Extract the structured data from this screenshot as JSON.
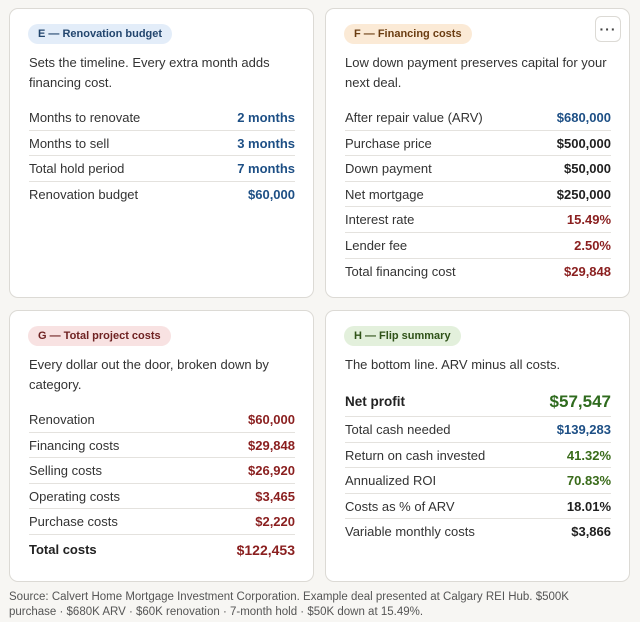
{
  "card_e": {
    "badge": "E — Renovation budget",
    "description": "Sets the timeline. Every extra month adds financing cost.",
    "rows": [
      {
        "label": "Months to renovate",
        "value": "2 months"
      },
      {
        "label": "Months to sell",
        "value": "3 months"
      },
      {
        "label": "Total hold period",
        "value": "7 months"
      },
      {
        "label": "Renovation budget",
        "value": "$60,000"
      }
    ]
  },
  "card_f": {
    "badge": "F — Financing costs",
    "more_label": "···",
    "description": "Low down payment preserves capital for your next deal.",
    "rows": [
      {
        "label": "After repair value (ARV)",
        "value": "$680,000"
      },
      {
        "label": "Purchase price",
        "value": "$500,000"
      },
      {
        "label": "Down payment",
        "value": "$50,000"
      },
      {
        "label": "Net mortgage",
        "value": "$250,000"
      },
      {
        "label": "Interest rate",
        "value": "15.49%"
      },
      {
        "label": "Lender fee",
        "value": "2.50%"
      },
      {
        "label": "Total financing cost",
        "value": "$29,848"
      }
    ]
  },
  "card_g": {
    "badge": "G — Total project costs",
    "description": "Every dollar out the door, broken down by category.",
    "rows": [
      {
        "label": "Renovation",
        "value": "$60,000"
      },
      {
        "label": "Financing costs",
        "value": "$29,848"
      },
      {
        "label": "Selling costs",
        "value": "$26,920"
      },
      {
        "label": "Operating costs",
        "value": "$3,465"
      },
      {
        "label": "Purchase costs",
        "value": "$2,220"
      },
      {
        "label": "Total costs",
        "value": "$122,453"
      }
    ]
  },
  "card_h": {
    "badge": "H — Flip summary",
    "description": "The bottom line. ARV minus all costs.",
    "rows": [
      {
        "label": "Net profit",
        "value": "$57,547"
      },
      {
        "label": "Total cash needed",
        "value": "$139,283"
      },
      {
        "label": "Return on cash invested",
        "value": "41.32%"
      },
      {
        "label": "Annualized ROI",
        "value": "70.83%"
      },
      {
        "label": "Costs as % of ARV",
        "value": "18.01%"
      },
      {
        "label": "Variable monthly costs",
        "value": "$3,866"
      }
    ]
  },
  "source": "Source: Calvert Home Mortgage Investment Corporation. Example deal presented at Calgary REI Hub. $500K purchase · $680K ARV · $60K renovation · 7-month hold · $50K down at 15.49%.",
  "colors": {
    "blue": "#1d4f85",
    "red": "#8a1f1f",
    "green": "#3a6b1a",
    "dark": "#1f1f1f"
  }
}
